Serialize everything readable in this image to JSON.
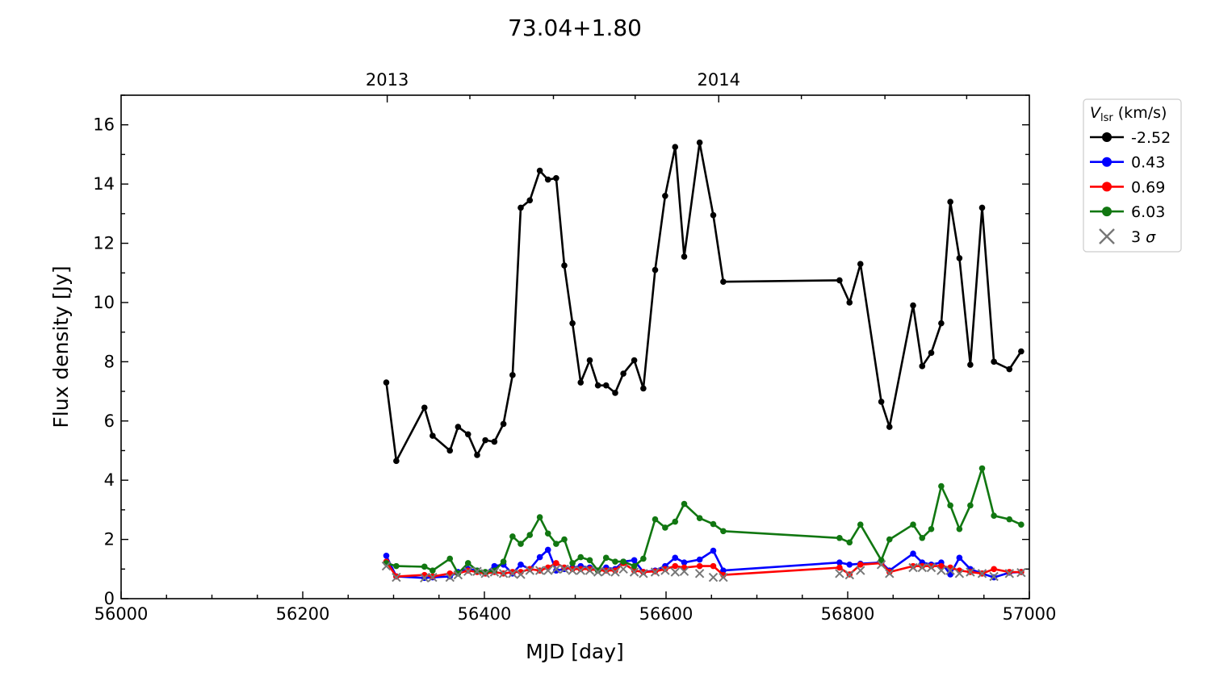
{
  "chart_data": {
    "type": "line",
    "title": "73.04+1.80",
    "xlabel": "MJD [day]",
    "ylabel": "Flux density [Jy]",
    "xlim": [
      56000,
      57000
    ],
    "ylim": [
      0,
      17
    ],
    "x_ticks": [
      56000,
      56200,
      56400,
      56600,
      56800,
      57000
    ],
    "y_ticks": [
      0,
      2,
      4,
      6,
      8,
      10,
      12,
      14,
      16
    ],
    "top_axis_ticks": [
      {
        "label": "2013",
        "mjd": 56293
      },
      {
        "label": "2014",
        "mjd": 56658
      }
    ],
    "grid": false,
    "legend": {
      "placement": "outside-right",
      "title_main": "V",
      "title_sub": "lsr",
      "title_unit": " (km/s)",
      "sigma_label_prefix": "3 ",
      "sigma_label_symbol": "σ"
    },
    "series": [
      {
        "name": "-2.52",
        "color": "#000000",
        "x": [
          56292,
          56303,
          56334,
          56343,
          56362,
          56371,
          56382,
          56392,
          56401,
          56411,
          56421,
          56431,
          56440,
          56450,
          56461,
          56470,
          56479,
          56488,
          56497,
          56506,
          56516,
          56525,
          56534,
          56544,
          56553,
          56565,
          56575,
          56588,
          56599,
          56610,
          56620,
          56637,
          56652,
          56663,
          56791,
          56802,
          56814,
          56837,
          56846,
          56872,
          56882,
          56892,
          56903,
          56913,
          56923,
          56935,
          56948,
          56961,
          56978,
          56991
        ],
        "y": [
          7.3,
          4.65,
          6.45,
          5.5,
          5.0,
          5.8,
          5.55,
          4.85,
          5.35,
          5.3,
          5.9,
          7.55,
          13.2,
          13.45,
          14.45,
          14.15,
          14.2,
          11.25,
          9.3,
          7.3,
          8.05,
          7.2,
          7.2,
          6.95,
          7.6,
          8.05,
          7.1,
          11.1,
          13.6,
          15.25,
          11.55,
          15.4,
          12.95,
          10.7,
          10.75,
          10.0,
          11.3,
          6.65,
          5.8,
          9.9,
          7.85,
          8.3,
          9.3,
          13.4,
          11.5,
          7.9,
          13.2,
          8.0,
          7.75,
          8.35
        ]
      },
      {
        "name": "0.43",
        "color": "#0000ff",
        "x": [
          56292,
          56303,
          56334,
          56343,
          56362,
          56371,
          56382,
          56392,
          56401,
          56411,
          56421,
          56431,
          56440,
          56450,
          56461,
          56470,
          56479,
          56488,
          56497,
          56506,
          56516,
          56525,
          56534,
          56544,
          56553,
          56565,
          56575,
          56588,
          56599,
          56610,
          56620,
          56637,
          56652,
          56663,
          56791,
          56802,
          56814,
          56837,
          56846,
          56872,
          56882,
          56892,
          56903,
          56913,
          56923,
          56935,
          56948,
          56961,
          56978,
          56991
        ],
        "y": [
          1.45,
          0.75,
          0.7,
          0.72,
          0.75,
          0.9,
          1.0,
          0.95,
          0.85,
          1.1,
          1.15,
          0.85,
          1.15,
          1.0,
          1.4,
          1.65,
          0.95,
          1.0,
          1.05,
          1.1,
          1.05,
          0.95,
          1.05,
          1.0,
          1.25,
          1.3,
          0.9,
          0.95,
          1.1,
          1.38,
          1.22,
          1.32,
          1.62,
          0.95,
          1.22,
          1.15,
          1.18,
          1.22,
          0.95,
          1.52,
          1.22,
          1.15,
          1.22,
          0.82,
          1.38,
          1.0,
          0.85,
          0.72,
          0.88,
          0.9
        ]
      },
      {
        "name": "0.69",
        "color": "#ff0000",
        "x": [
          56292,
          56303,
          56334,
          56343,
          56362,
          56371,
          56382,
          56392,
          56401,
          56411,
          56421,
          56431,
          56440,
          56450,
          56461,
          56470,
          56479,
          56488,
          56497,
          56506,
          56516,
          56525,
          56534,
          56544,
          56553,
          56565,
          56575,
          56588,
          56599,
          56610,
          56620,
          56637,
          56652,
          56663,
          56791,
          56802,
          56814,
          56837,
          56846,
          56872,
          56882,
          56892,
          56903,
          56913,
          56923,
          56935,
          56948,
          56961,
          56978,
          56991
        ],
        "y": [
          1.25,
          0.75,
          0.8,
          0.75,
          0.85,
          0.85,
          0.95,
          0.9,
          0.85,
          0.9,
          0.85,
          0.9,
          0.9,
          1.0,
          0.95,
          1.05,
          1.2,
          1.05,
          1.0,
          1.0,
          1.0,
          0.95,
          0.95,
          0.95,
          1.2,
          0.95,
          0.9,
          0.92,
          1.0,
          1.1,
          1.05,
          1.1,
          1.1,
          0.8,
          1.05,
          0.82,
          1.15,
          1.2,
          0.9,
          1.1,
          1.1,
          1.1,
          1.1,
          1.05,
          0.95,
          0.9,
          0.85,
          1.0,
          0.9,
          0.9
        ]
      },
      {
        "name": "6.03",
        "color": "#117711",
        "x": [
          56292,
          56303,
          56334,
          56343,
          56362,
          56371,
          56382,
          56392,
          56401,
          56411,
          56421,
          56431,
          56440,
          56450,
          56461,
          56470,
          56479,
          56488,
          56497,
          56506,
          56516,
          56525,
          56534,
          56544,
          56553,
          56565,
          56575,
          56588,
          56599,
          56610,
          56620,
          56637,
          56652,
          56663,
          56791,
          56802,
          56814,
          56837,
          56846,
          56872,
          56882,
          56892,
          56903,
          56913,
          56923,
          56935,
          56948,
          56961,
          56978,
          56991
        ],
        "y": [
          1.2,
          1.1,
          1.08,
          0.95,
          1.35,
          0.85,
          1.2,
          0.95,
          0.9,
          0.95,
          1.25,
          2.1,
          1.85,
          2.15,
          2.75,
          2.2,
          1.85,
          2.0,
          1.2,
          1.4,
          1.3,
          0.95,
          1.38,
          1.25,
          1.25,
          1.1,
          1.35,
          2.68,
          2.4,
          2.6,
          3.2,
          2.72,
          2.52,
          2.28,
          2.05,
          1.9,
          2.5,
          1.3,
          2.0,
          2.5,
          2.05,
          2.35,
          3.8,
          3.15,
          2.35,
          3.15,
          4.4,
          2.8,
          2.68,
          2.5
        ]
      }
    ],
    "sigma_series": {
      "name": "3 σ",
      "color": "#777777",
      "x": [
        56292,
        56303,
        56334,
        56343,
        56362,
        56371,
        56382,
        56392,
        56401,
        56411,
        56421,
        56431,
        56440,
        56450,
        56461,
        56470,
        56479,
        56488,
        56497,
        56506,
        56516,
        56525,
        56534,
        56544,
        56553,
        56565,
        56575,
        56588,
        56599,
        56610,
        56620,
        56637,
        56652,
        56663,
        56791,
        56802,
        56814,
        56837,
        56846,
        56872,
        56882,
        56892,
        56903,
        56913,
        56923,
        56935,
        56948,
        56961,
        56978,
        56991
      ],
      "y": [
        1.1,
        0.72,
        0.7,
        0.72,
        0.72,
        0.8,
        0.92,
        0.92,
        0.85,
        0.9,
        0.85,
        0.85,
        0.82,
        0.95,
        0.95,
        0.95,
        1.0,
        1.0,
        0.95,
        0.95,
        0.95,
        0.9,
        0.92,
        0.9,
        1.0,
        0.9,
        0.85,
        0.9,
        0.95,
        0.9,
        0.92,
        0.85,
        0.72,
        0.72,
        0.85,
        0.8,
        0.95,
        1.15,
        0.85,
        1.05,
        1.05,
        1.05,
        0.95,
        0.95,
        0.85,
        0.9,
        0.85,
        0.75,
        0.85,
        0.88
      ]
    }
  }
}
